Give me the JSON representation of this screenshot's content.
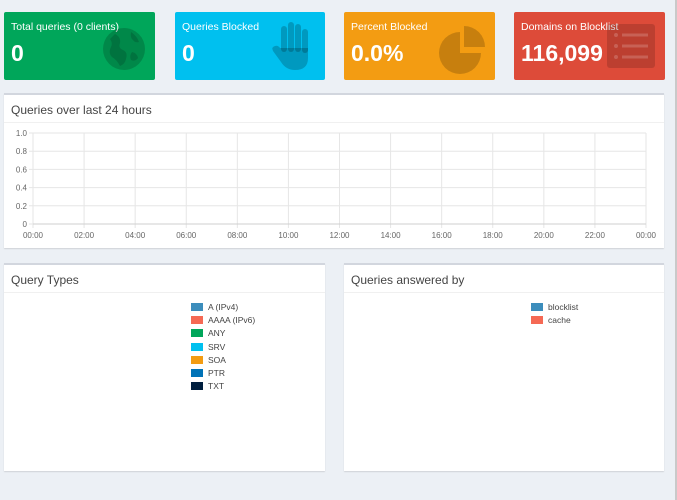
{
  "tiles": [
    {
      "label": "Total queries (0 clients)",
      "value": "0",
      "icon": "globe-icon",
      "color": "#00a65a"
    },
    {
      "label": "Queries Blocked",
      "value": "0",
      "icon": "hand-icon",
      "color": "#00c0ef"
    },
    {
      "label": "Percent Blocked",
      "value": "0.0%",
      "icon": "pie-chart-icon",
      "color": "#f39c12"
    },
    {
      "label": "Domains on Blocklist",
      "value": "116,099",
      "icon": "list-icon",
      "color": "#dd4b39"
    }
  ],
  "queries_chart": {
    "title": "Queries over last 24 hours"
  },
  "chart_data": {
    "type": "line",
    "title": "Queries over last 24 hours",
    "x": [
      "00:00",
      "02:00",
      "04:00",
      "06:00",
      "08:00",
      "10:00",
      "12:00",
      "14:00",
      "16:00",
      "18:00",
      "20:00",
      "22:00",
      "00:00"
    ],
    "y_ticks": [
      "1.0",
      "0.8",
      "0.6",
      "0.4",
      "0.2",
      "0"
    ],
    "ylim": [
      0,
      1
    ],
    "series": [],
    "grid": true
  },
  "query_types": {
    "title": "Query Types",
    "legend": [
      {
        "label": "A (IPv4)",
        "color": "#3c8dbc"
      },
      {
        "label": "AAAA (IPv6)",
        "color": "#f56954"
      },
      {
        "label": "ANY",
        "color": "#00a65a"
      },
      {
        "label": "SRV",
        "color": "#00c0ef"
      },
      {
        "label": "SOA",
        "color": "#f39c12"
      },
      {
        "label": "PTR",
        "color": "#0073b7"
      },
      {
        "label": "TXT",
        "color": "#001f3f"
      }
    ]
  },
  "queries_answered": {
    "title": "Queries answered by",
    "legend": [
      {
        "label": "blocklist",
        "color": "#3c8dbc"
      },
      {
        "label": "cache",
        "color": "#f56954"
      }
    ]
  }
}
